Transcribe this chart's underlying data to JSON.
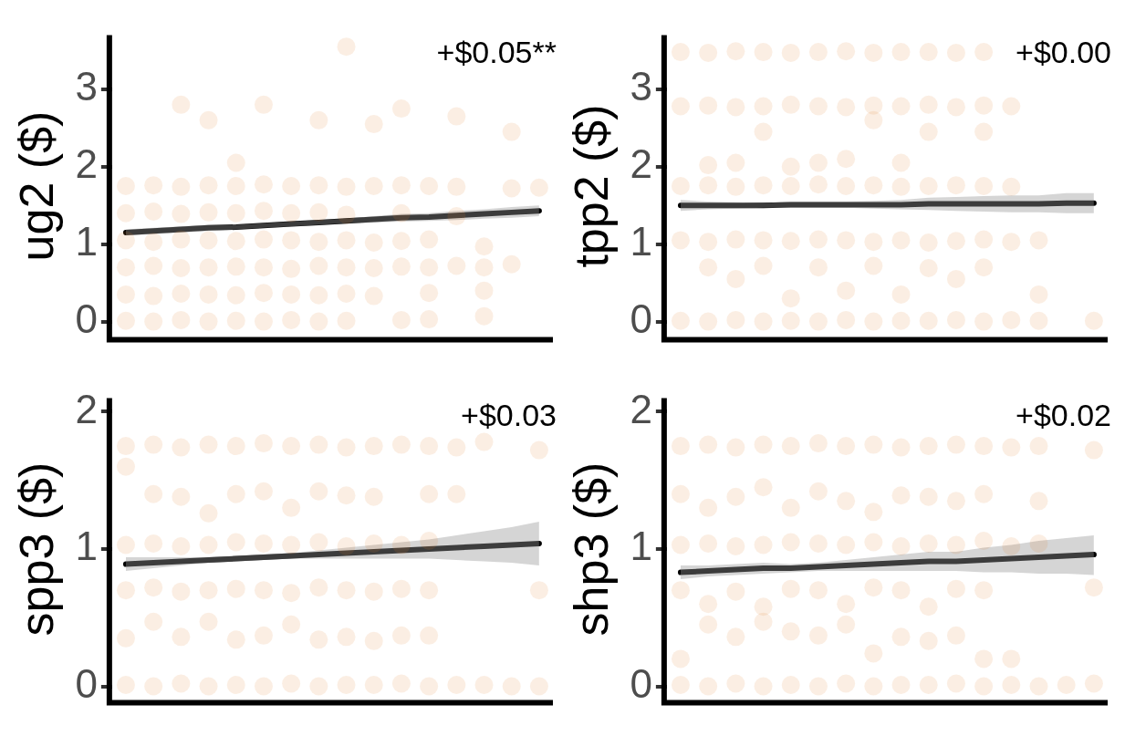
{
  "chart_data": [
    {
      "type": "scatter",
      "ylabel": "ug2 ($)",
      "categories": [
        null,
        null,
        null,
        null,
        null,
        null,
        null,
        null,
        null,
        null,
        null,
        null,
        null,
        null,
        null,
        null
      ],
      "ylim": [
        -0.2,
        3.7
      ],
      "yticks": [
        0,
        1,
        2,
        3
      ],
      "tick_labels": "y",
      "grid": false,
      "marker": "circle",
      "annotations": [
        "+$0.05**"
      ],
      "series": [
        {
          "color": "#e07b28",
          "values": [
            1.75,
            1.76,
            1.74,
            1.76,
            1.75,
            1.77,
            1.75,
            1.76,
            1.74,
            1.75,
            1.76,
            1.75,
            1.74,
            null,
            1.72,
            1.73
          ]
        },
        {
          "color": "#e07b28",
          "values": [
            1.4,
            1.42,
            1.39,
            1.41,
            1.4,
            1.43,
            1.4,
            1.41,
            1.38,
            null,
            1.4,
            null,
            1.36,
            null,
            null,
            null
          ]
        },
        {
          "color": "#e07b28",
          "values": [
            1.05,
            1.03,
            1.06,
            1.05,
            1.04,
            1.06,
            1.05,
            1.03,
            1.05,
            1.02,
            1.04,
            1.06,
            null,
            0.97,
            null,
            null
          ]
        },
        {
          "color": "#e07b28",
          "values": [
            0.7,
            0.72,
            0.69,
            0.7,
            0.71,
            0.7,
            0.68,
            0.72,
            0.7,
            0.69,
            0.71,
            0.7,
            0.72,
            0.7,
            0.74,
            null
          ]
        },
        {
          "color": "#e07b28",
          "values": [
            0.35,
            0.33,
            0.36,
            0.35,
            0.34,
            0.37,
            0.35,
            0.34,
            0.36,
            0.33,
            null,
            0.37,
            null,
            0.4,
            null,
            null
          ]
        },
        {
          "color": "#e07b28",
          "values": [
            0.01,
            0,
            0.02,
            0,
            0.01,
            0,
            0.02,
            0,
            0.01,
            null,
            0.02,
            0.03,
            null,
            0.07,
            null,
            null
          ]
        },
        {
          "color": "#e07b28",
          "values": [
            null,
            null,
            2.8,
            2.6,
            2.05,
            2.8,
            null,
            2.6,
            3.55,
            2.55,
            2.75,
            null,
            2.65,
            null,
            2.45,
            null
          ]
        },
        {
          "type": "line",
          "marker": "none",
          "color": "#000000",
          "values": [
            1.15,
            1.17,
            1.19,
            1.21,
            1.22,
            1.24,
            1.26,
            1.28,
            1.3,
            1.32,
            1.34,
            1.35,
            1.37,
            1.39,
            1.41,
            1.43
          ],
          "lower": [
            1.11,
            1.13,
            1.15,
            1.17,
            1.19,
            1.21,
            1.23,
            1.25,
            1.27,
            1.28,
            1.29,
            1.3,
            1.31,
            1.33,
            1.34,
            1.36
          ],
          "upper": [
            1.19,
            1.21,
            1.23,
            1.25,
            1.25,
            1.27,
            1.29,
            1.31,
            1.33,
            1.36,
            1.39,
            1.4,
            1.43,
            1.45,
            1.48,
            1.5
          ]
        }
      ]
    },
    {
      "type": "scatter",
      "ylabel": "tpp2 ($)",
      "categories": [
        null,
        null,
        null,
        null,
        null,
        null,
        null,
        null,
        null,
        null,
        null,
        null,
        null,
        null,
        null,
        null
      ],
      "ylim": [
        -0.2,
        3.7
      ],
      "yticks": [
        0,
        1,
        2,
        3
      ],
      "tick_labels": "y",
      "grid": false,
      "marker": "circle",
      "annotations": [
        "+$0.00"
      ],
      "series": [
        {
          "color": "#e07b28",
          "values": [
            3.48,
            3.47,
            3.49,
            3.48,
            3.47,
            3.48,
            3.49,
            3.47,
            3.48,
            3.48,
            3.47,
            3.48,
            null,
            null,
            null,
            null
          ]
        },
        {
          "color": "#e07b28",
          "values": [
            2.78,
            2.79,
            2.77,
            2.78,
            2.8,
            2.78,
            2.77,
            2.79,
            2.78,
            2.8,
            2.77,
            2.79,
            2.78,
            null,
            null,
            null
          ]
        },
        {
          "color": "#e07b28",
          "values": [
            null,
            2.02,
            2.05,
            2.45,
            2.0,
            2.05,
            2.1,
            2.6,
            2.05,
            2.45,
            null,
            2.45,
            null,
            null,
            null,
            null
          ]
        },
        {
          "color": "#e07b28",
          "values": [
            1.75,
            1.76,
            1.74,
            1.76,
            1.75,
            1.77,
            1.75,
            1.76,
            1.74,
            1.75,
            1.76,
            1.75,
            1.74,
            null,
            null,
            null
          ]
        },
        {
          "color": "#e07b28",
          "values": [
            1.05,
            1.03,
            1.06,
            1.05,
            1.04,
            1.06,
            1.05,
            1.03,
            1.05,
            1.02,
            1.04,
            1.06,
            1.03,
            1.05,
            null,
            null
          ]
        },
        {
          "color": "#e07b28",
          "values": [
            null,
            0.7,
            0.55,
            0.72,
            0.3,
            0.7,
            0.4,
            0.72,
            0.35,
            0.69,
            0.55,
            0.7,
            null,
            0.35,
            null,
            null
          ]
        },
        {
          "color": "#e07b28",
          "values": [
            0.01,
            0,
            0.02,
            0,
            0.01,
            0,
            0.02,
            0,
            0.01,
            0.01,
            0.02,
            0,
            0.02,
            0.01,
            null,
            0.01
          ]
        },
        {
          "type": "line",
          "marker": "none",
          "color": "#000000",
          "values": [
            1.5,
            1.5,
            1.5,
            1.5,
            1.51,
            1.51,
            1.51,
            1.51,
            1.51,
            1.52,
            1.52,
            1.52,
            1.52,
            1.52,
            1.53,
            1.53
          ],
          "lower": [
            1.43,
            1.45,
            1.46,
            1.47,
            1.47,
            1.47,
            1.47,
            1.46,
            1.45,
            1.44,
            1.43,
            1.42,
            1.41,
            1.41,
            1.4,
            1.4
          ],
          "upper": [
            1.57,
            1.55,
            1.54,
            1.53,
            1.55,
            1.55,
            1.55,
            1.56,
            1.57,
            1.6,
            1.61,
            1.62,
            1.63,
            1.63,
            1.66,
            1.66
          ]
        }
      ]
    },
    {
      "type": "scatter",
      "ylabel": "spp3 ($)",
      "categories": [
        null,
        null,
        null,
        null,
        null,
        null,
        null,
        null,
        null,
        null,
        null,
        null,
        null,
        null,
        null,
        null
      ],
      "ylim": [
        -0.1,
        2.1
      ],
      "yticks": [
        0,
        1,
        2
      ],
      "tick_labels": "y",
      "grid": false,
      "marker": "circle",
      "annotations": [
        "+$0.03"
      ],
      "series": [
        {
          "color": "#e07b28",
          "values": [
            1.75,
            1.76,
            1.74,
            1.76,
            1.75,
            1.77,
            1.75,
            1.76,
            1.74,
            1.75,
            1.76,
            1.75,
            1.74,
            1.78,
            null,
            1.72
          ]
        },
        {
          "color": "#e07b28",
          "values": [
            1.6,
            1.4,
            1.38,
            1.26,
            1.4,
            1.42,
            1.3,
            1.42,
            1.39,
            1.38,
            null,
            1.4,
            1.4,
            null,
            null,
            null
          ]
        },
        {
          "color": "#e07b28",
          "values": [
            1.03,
            1.04,
            1.02,
            1.03,
            1.05,
            1.04,
            1.03,
            1.05,
            1.02,
            1.04,
            1.03,
            1.06,
            null,
            null,
            null,
            null
          ]
        },
        {
          "color": "#e07b28",
          "values": [
            0.7,
            0.72,
            0.69,
            0.7,
            0.71,
            0.7,
            0.68,
            0.72,
            0.7,
            0.69,
            0.71,
            0.7,
            null,
            null,
            null,
            0.7
          ]
        },
        {
          "color": "#e07b28",
          "values": [
            0.35,
            0.47,
            0.36,
            0.47,
            0.34,
            0.37,
            0.45,
            0.34,
            0.36,
            0.33,
            0.37,
            0.37,
            null,
            null,
            null,
            null
          ]
        },
        {
          "color": "#e07b28",
          "values": [
            0.01,
            0,
            0.02,
            0,
            0.01,
            0,
            0.02,
            0,
            0.01,
            0.01,
            0.02,
            0,
            0.01,
            0.01,
            0,
            0
          ]
        },
        {
          "type": "line",
          "marker": "none",
          "color": "#000000",
          "values": [
            0.89,
            0.9,
            0.91,
            0.92,
            0.93,
            0.94,
            0.95,
            0.96,
            0.97,
            0.98,
            0.99,
            1,
            1.01,
            1.02,
            1.03,
            1.04
          ],
          "lower": [
            0.84,
            0.86,
            0.88,
            0.9,
            0.91,
            0.92,
            0.93,
            0.93,
            0.93,
            0.93,
            0.93,
            0.93,
            0.92,
            0.91,
            0.9,
            0.88
          ],
          "upper": [
            0.94,
            0.94,
            0.94,
            0.94,
            0.95,
            0.96,
            0.97,
            0.99,
            1.01,
            1.03,
            1.05,
            1.07,
            1.1,
            1.13,
            1.16,
            1.2
          ]
        }
      ]
    },
    {
      "type": "scatter",
      "ylabel": "shp3 ($)",
      "categories": [
        null,
        null,
        null,
        null,
        null,
        null,
        null,
        null,
        null,
        null,
        null,
        null,
        null,
        null,
        null,
        null
      ],
      "ylim": [
        -0.1,
        2.1
      ],
      "yticks": [
        0,
        1,
        2
      ],
      "tick_labels": "y",
      "grid": false,
      "marker": "circle",
      "annotations": [
        "+$0.02"
      ],
      "series": [
        {
          "color": "#e07b28",
          "values": [
            1.75,
            1.76,
            1.74,
            1.76,
            1.75,
            1.77,
            1.75,
            1.76,
            1.74,
            1.75,
            1.76,
            1.75,
            1.74,
            1.75,
            null,
            1.72
          ]
        },
        {
          "color": "#e07b28",
          "values": [
            1.4,
            1.3,
            1.38,
            1.45,
            1.3,
            1.42,
            1.35,
            1.27,
            1.39,
            1.38,
            1.35,
            1.4,
            null,
            1.35,
            null,
            null
          ]
        },
        {
          "color": "#e07b28",
          "values": [
            1.03,
            1.04,
            1.02,
            1.03,
            1.05,
            1.04,
            1.03,
            1.05,
            1.02,
            1.04,
            1.03,
            1.06,
            1.02,
            1.04,
            null,
            null
          ]
        },
        {
          "color": "#e07b28",
          "values": [
            0.7,
            0.6,
            0.69,
            0.58,
            0.71,
            0.7,
            0.6,
            0.72,
            0.7,
            0.58,
            0.71,
            0.7,
            null,
            null,
            null,
            0.72
          ]
        },
        {
          "color": "#e07b28",
          "values": [
            0.2,
            0.45,
            0.36,
            0.47,
            0.4,
            0.37,
            0.45,
            0.24,
            0.36,
            0.33,
            0.37,
            0.2,
            0.2,
            null,
            null,
            null
          ]
        },
        {
          "color": "#e07b28",
          "values": [
            0.01,
            0,
            0.02,
            0,
            0.01,
            0,
            0.02,
            0,
            0.01,
            0.01,
            0.02,
            0,
            0.01,
            0,
            0.01,
            0.02
          ]
        },
        {
          "type": "line",
          "marker": "none",
          "color": "#000000",
          "values": [
            0.83,
            0.84,
            0.85,
            0.86,
            0.86,
            0.87,
            0.88,
            0.89,
            0.9,
            0.91,
            0.91,
            0.92,
            0.93,
            0.94,
            0.95,
            0.96
          ],
          "lower": [
            0.78,
            0.8,
            0.81,
            0.82,
            0.83,
            0.84,
            0.84,
            0.84,
            0.84,
            0.84,
            0.84,
            0.83,
            0.83,
            0.82,
            0.82,
            0.81
          ],
          "upper": [
            0.88,
            0.88,
            0.89,
            0.9,
            0.89,
            0.9,
            0.92,
            0.94,
            0.96,
            0.98,
            0.98,
            1.01,
            1.03,
            1.06,
            1.08,
            1.1
          ]
        }
      ]
    }
  ]
}
